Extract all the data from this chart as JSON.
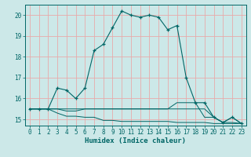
{
  "title": "",
  "xlabel": "Humidex (Indice chaleur)",
  "ylabel": "",
  "bg_color": "#cce8e8",
  "grid_color": "#e8aaaa",
  "line_color": "#006666",
  "spine_color": "#006666",
  "xlim": [
    -0.5,
    23.5
  ],
  "ylim": [
    14.7,
    20.5
  ],
  "yticks": [
    15,
    16,
    17,
    18,
    19,
    20
  ],
  "xticks": [
    0,
    1,
    2,
    3,
    4,
    5,
    6,
    7,
    8,
    9,
    10,
    11,
    12,
    13,
    14,
    15,
    16,
    17,
    18,
    19,
    20,
    21,
    22,
    23
  ],
  "main_line": {
    "x": [
      0,
      1,
      2,
      3,
      4,
      5,
      6,
      7,
      8,
      9,
      10,
      11,
      12,
      13,
      14,
      15,
      16,
      17,
      18,
      19,
      20,
      21,
      22,
      23
    ],
    "y": [
      15.5,
      15.5,
      15.5,
      16.5,
      16.4,
      16.0,
      16.5,
      18.3,
      18.6,
      19.4,
      20.2,
      20.0,
      19.9,
      20.0,
      19.9,
      19.3,
      19.5,
      17.0,
      15.8,
      15.8,
      15.1,
      14.85,
      15.1,
      14.8
    ]
  },
  "flat_lines": [
    {
      "x": [
        0,
        1,
        2,
        3,
        4,
        5,
        6,
        7,
        8,
        9,
        10,
        11,
        12,
        13,
        14,
        15,
        16,
        17,
        18,
        19,
        20,
        21,
        22,
        23
      ],
      "y": [
        15.5,
        15.5,
        15.5,
        15.5,
        15.4,
        15.4,
        15.5,
        15.5,
        15.5,
        15.5,
        15.5,
        15.5,
        15.5,
        15.5,
        15.5,
        15.5,
        15.5,
        15.5,
        15.5,
        15.5,
        15.1,
        14.85,
        14.85,
        14.8
      ]
    },
    {
      "x": [
        0,
        1,
        2,
        3,
        4,
        5,
        6,
        7,
        8,
        9,
        10,
        11,
        12,
        13,
        14,
        15,
        16,
        17,
        18,
        19,
        20,
        21,
        22,
        23
      ],
      "y": [
        15.5,
        15.5,
        15.5,
        15.3,
        15.15,
        15.15,
        15.1,
        15.1,
        14.95,
        14.95,
        14.9,
        14.9,
        14.9,
        14.9,
        14.9,
        14.9,
        14.85,
        14.85,
        14.85,
        14.85,
        14.8,
        14.8,
        14.8,
        14.8
      ]
    },
    {
      "x": [
        0,
        1,
        2,
        3,
        4,
        5,
        6,
        7,
        8,
        9,
        10,
        11,
        12,
        13,
        14,
        15,
        16,
        17,
        18,
        19,
        20,
        21,
        22,
        23
      ],
      "y": [
        15.5,
        15.5,
        15.5,
        15.5,
        15.5,
        15.5,
        15.5,
        15.5,
        15.5,
        15.5,
        15.5,
        15.5,
        15.5,
        15.5,
        15.5,
        15.5,
        15.8,
        15.8,
        15.8,
        15.1,
        15.1,
        14.85,
        15.1,
        14.8
      ]
    }
  ]
}
